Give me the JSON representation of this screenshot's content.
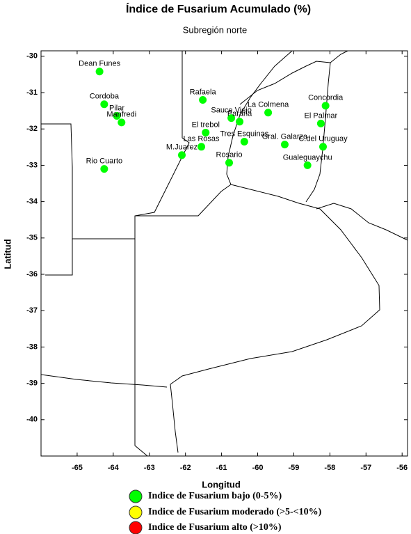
{
  "chart_data": {
    "type": "scatter",
    "title": "Índice de Fusarium Acumulado (%)",
    "subtitle": "Subregión norte",
    "x_label": "Longitud",
    "y_label": "Latitud",
    "xlim": [
      -66,
      -55.85
    ],
    "ylim": [
      -41,
      -29.85
    ],
    "xticks": [
      -65,
      -64,
      -63,
      -62,
      -61,
      -60,
      -59,
      -58,
      -57,
      -56
    ],
    "yticks": [
      -30,
      -31,
      -32,
      -33,
      -34,
      -35,
      -36,
      -37,
      -38,
      -39,
      -40
    ],
    "grid": false,
    "series": [
      {
        "name": "Indice de Fusarium bajo (0-5%)",
        "color": "#00ff00",
        "labels": [
          "Dean Funes",
          "Cordoba",
          "Pilar",
          "Manfredi",
          "Rio Cuarto",
          "Rafaela",
          "M.Juarez",
          "Las Rosas",
          "El trebol",
          "Rosario",
          "Sauce Viejo",
          "Parana",
          "Tres Esquinas",
          "La Colmena",
          "Gral. Galarza",
          "Concordia",
          "El Palmar",
          "C.del Uruguay",
          "Gualeguaychu"
        ],
        "x": [
          -64.38,
          -64.25,
          -63.9,
          -63.77,
          -64.25,
          -61.52,
          -62.1,
          -61.56,
          -61.44,
          -60.79,
          -60.73,
          -60.5,
          -60.37,
          -59.71,
          -59.25,
          -58.12,
          -58.25,
          -58.19,
          -58.62
        ],
        "values": [
          -30.42,
          -31.32,
          -31.64,
          -31.82,
          -33.1,
          -31.2,
          -32.72,
          -32.49,
          -32.1,
          -32.93,
          -31.7,
          -31.8,
          -32.35,
          -31.55,
          -32.43,
          -31.36,
          -31.85,
          -32.49,
          -33.0
        ]
      },
      {
        "name": "Indice de Fusarium moderado (>5-<10%)",
        "color": "#ffff00",
        "x": [],
        "values": []
      },
      {
        "name": "Indice de Fusarium alto (>10%)",
        "color": "#ff0000",
        "x": [],
        "values": []
      }
    ]
  }
}
